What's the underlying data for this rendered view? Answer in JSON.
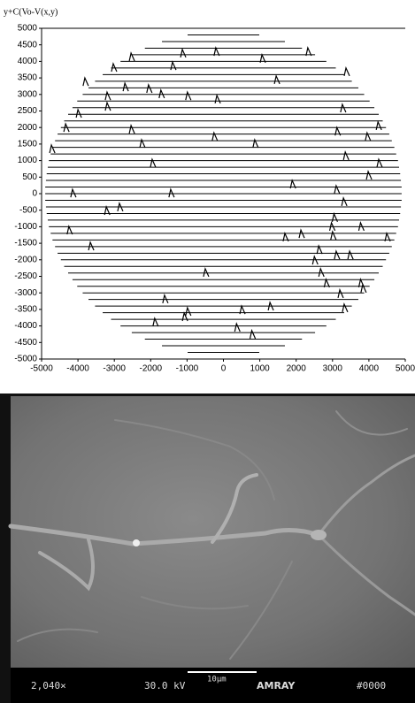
{
  "chart_data": {
    "type": "scanlines",
    "y_label": "y+C(Vo-V(x,y)",
    "xlim": [
      -5000,
      5000
    ],
    "ylim": [
      -5000,
      5000
    ],
    "xticks": [
      -5000,
      -4000,
      -3000,
      -2000,
      -1000,
      0,
      1000,
      2000,
      3000,
      4000,
      5000
    ],
    "yticks": [
      5000,
      4500,
      4000,
      3500,
      3000,
      2500,
      2000,
      1500,
      1000,
      500,
      0,
      -500,
      -1000,
      -1500,
      -2000,
      -2500,
      -3000,
      -3500,
      -4000,
      -4500,
      -5000
    ],
    "color": "#000000",
    "traces": [
      [
        4800,
        -985,
        985
      ],
      [
        4600,
        -1690,
        1690
      ],
      [
        4400,
        -2160,
        2160
      ],
      [
        4200,
        -2520,
        2520
      ],
      [
        4000,
        -2830,
        2830
      ],
      [
        3800,
        -3090,
        3090
      ],
      [
        3600,
        -3320,
        3320
      ],
      [
        3400,
        -3530,
        3530
      ],
      [
        3200,
        -3710,
        3710
      ],
      [
        3000,
        -3870,
        3870
      ],
      [
        2800,
        -4020,
        4020
      ],
      [
        2600,
        -4150,
        4150
      ],
      [
        2400,
        -4270,
        4270
      ],
      [
        2200,
        -4380,
        4380
      ],
      [
        2000,
        -4470,
        4470
      ],
      [
        1800,
        -4560,
        4560
      ],
      [
        1600,
        -4630,
        4630
      ],
      [
        1400,
        -4700,
        4700
      ],
      [
        1200,
        -4750,
        4750
      ],
      [
        1000,
        -4800,
        4800
      ],
      [
        800,
        -4830,
        4830
      ],
      [
        600,
        -4860,
        4860
      ],
      [
        400,
        -4880,
        4880
      ],
      [
        200,
        -4900,
        4900
      ],
      [
        0,
        -4900,
        4900
      ],
      [
        -200,
        -4900,
        4900
      ],
      [
        -400,
        -4880,
        4880
      ],
      [
        -600,
        -4860,
        4860
      ],
      [
        -800,
        -4830,
        4830
      ],
      [
        -1000,
        -4800,
        4800
      ],
      [
        -1200,
        -4750,
        4750
      ],
      [
        -1400,
        -4700,
        4700
      ],
      [
        -1600,
        -4630,
        4630
      ],
      [
        -1800,
        -4560,
        4560
      ],
      [
        -2000,
        -4470,
        4470
      ],
      [
        -2200,
        -4380,
        4380
      ],
      [
        -2400,
        -4270,
        4270
      ],
      [
        -2600,
        -4150,
        4150
      ],
      [
        -2800,
        -4020,
        4020
      ],
      [
        -3000,
        -3870,
        3870
      ],
      [
        -3200,
        -3710,
        3710
      ],
      [
        -3400,
        -3530,
        3530
      ],
      [
        -3600,
        -3320,
        3320
      ],
      [
        -3800,
        -3090,
        3090
      ],
      [
        -4000,
        -2830,
        2830
      ],
      [
        -4200,
        -2520,
        2520
      ],
      [
        -4400,
        -2160,
        2160
      ],
      [
        -4600,
        -1690,
        1690
      ],
      [
        -4800,
        -985,
        985
      ]
    ],
    "peaks": [
      [
        -2540,
        4250
      ],
      [
        -1130,
        4360
      ],
      [
        -210,
        4410
      ],
      [
        1060,
        4200
      ],
      [
        2320,
        4410
      ],
      [
        -3030,
        3930
      ],
      [
        -1400,
        3980
      ],
      [
        -2710,
        3340
      ],
      [
        -3810,
        3500
      ],
      [
        -2060,
        3290
      ],
      [
        -1720,
        3130
      ],
      [
        -990,
        3070
      ],
      [
        -180,
        2970
      ],
      [
        1450,
        3560
      ],
      [
        3370,
        3800
      ],
      [
        -3200,
        3070
      ],
      [
        -3200,
        2750
      ],
      [
        3270,
        2700
      ],
      [
        -4000,
        2540
      ],
      [
        -4340,
        2110
      ],
      [
        -2540,
        2060
      ],
      [
        4250,
        2170
      ],
      [
        -260,
        1840
      ],
      [
        -2250,
        1630
      ],
      [
        860,
        1630
      ],
      [
        3120,
        2000
      ],
      [
        3950,
        1840
      ],
      [
        -4730,
        1470
      ],
      [
        3350,
        1260
      ],
      [
        -1960,
        1040
      ],
      [
        4270,
        1040
      ],
      [
        3980,
        670
      ],
      [
        1890,
        400
      ],
      [
        -4150,
        130
      ],
      [
        -1450,
        130
      ],
      [
        3100,
        240
      ],
      [
        3300,
        -130
      ],
      [
        -3220,
        -400
      ],
      [
        -2860,
        -290
      ],
      [
        3040,
        -610
      ],
      [
        2970,
        -880
      ],
      [
        3770,
        -880
      ],
      [
        -4250,
        -990
      ],
      [
        2130,
        -1100
      ],
      [
        1690,
        -1200
      ],
      [
        3000,
        -1150
      ],
      [
        4490,
        -1200
      ],
      [
        -3660,
        -1470
      ],
      [
        2620,
        -1580
      ],
      [
        3100,
        -1740
      ],
      [
        2500,
        -1900
      ],
      [
        3470,
        -1740
      ],
      [
        -500,
        -2270
      ],
      [
        2670,
        -2270
      ],
      [
        2820,
        -2590
      ],
      [
        3770,
        -2590
      ],
      [
        3830,
        -2750
      ],
      [
        3200,
        -2910
      ],
      [
        -1620,
        -3070
      ],
      [
        500,
        -3400
      ],
      [
        1280,
        -3290
      ],
      [
        -990,
        -3450
      ],
      [
        -1080,
        -3610
      ],
      [
        -1890,
        -3770
      ],
      [
        360,
        -3930
      ],
      [
        780,
        -4140
      ],
      [
        3320,
        -3340
      ]
    ]
  },
  "sem_image": {
    "magnification": "2,040×",
    "voltage": "30.0 kV",
    "scale_bar": "10μm",
    "brand": "AMRAY",
    "image_id": "#0000"
  }
}
